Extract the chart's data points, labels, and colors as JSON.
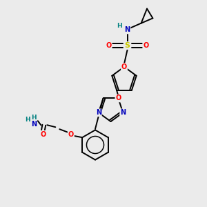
{
  "bg_color": "#ebebeb",
  "bond_color": "#000000",
  "atom_colors": {
    "O": "#ff0000",
    "N": "#0000bb",
    "S": "#cccc00",
    "H": "#008080",
    "C": "#000000"
  }
}
